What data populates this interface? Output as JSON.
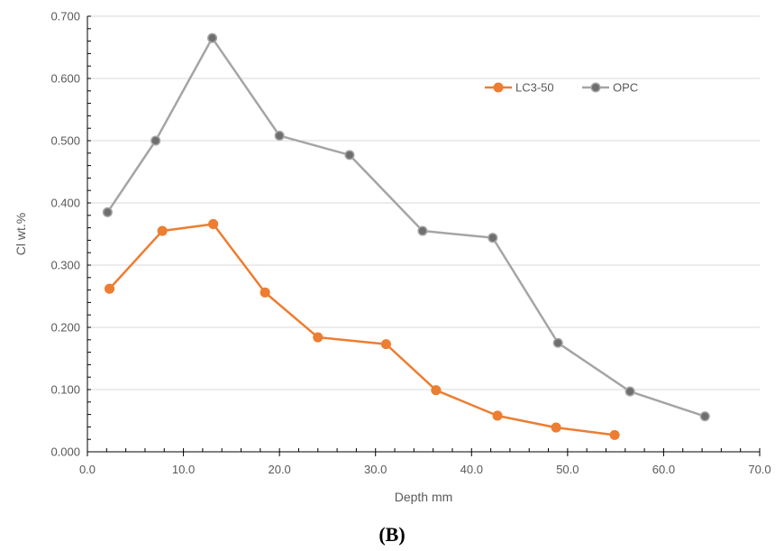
{
  "caption": "(B)",
  "chart_data": {
    "type": "line",
    "xlabel": "Depth mm",
    "ylabel": "Cl wt.%",
    "xlim": [
      0,
      70
    ],
    "ylim": [
      0,
      0.7
    ],
    "x_ticks": [
      "0.0",
      "10.0",
      "20.0",
      "30.0",
      "40.0",
      "50.0",
      "60.0",
      "70.0"
    ],
    "y_ticks": [
      "0.000",
      "0.100",
      "0.200",
      "0.300",
      "0.400",
      "0.500",
      "0.600",
      "0.700"
    ],
    "grid": "horizontal",
    "legend_position": "top-right",
    "series": [
      {
        "name": "LC3-50",
        "color": "#ED7D31",
        "points": [
          {
            "x": 2.3,
            "y": 0.262
          },
          {
            "x": 7.8,
            "y": 0.355
          },
          {
            "x": 13.1,
            "y": 0.366
          },
          {
            "x": 18.5,
            "y": 0.256
          },
          {
            "x": 24.0,
            "y": 0.184
          },
          {
            "x": 31.1,
            "y": 0.173
          },
          {
            "x": 36.3,
            "y": 0.099
          },
          {
            "x": 42.7,
            "y": 0.058
          },
          {
            "x": 48.8,
            "y": 0.039
          },
          {
            "x": 54.9,
            "y": 0.027
          }
        ]
      },
      {
        "name": "OPC",
        "color": "#A5A5A5",
        "points": [
          {
            "x": 2.1,
            "y": 0.385
          },
          {
            "x": 7.1,
            "y": 0.5
          },
          {
            "x": 13.0,
            "y": 0.665
          },
          {
            "x": 20.0,
            "y": 0.508
          },
          {
            "x": 27.3,
            "y": 0.477
          },
          {
            "x": 34.9,
            "y": 0.355
          },
          {
            "x": 42.2,
            "y": 0.344
          },
          {
            "x": 49.0,
            "y": 0.175
          },
          {
            "x": 56.5,
            "y": 0.097
          },
          {
            "x": 64.3,
            "y": 0.057
          }
        ]
      }
    ]
  }
}
